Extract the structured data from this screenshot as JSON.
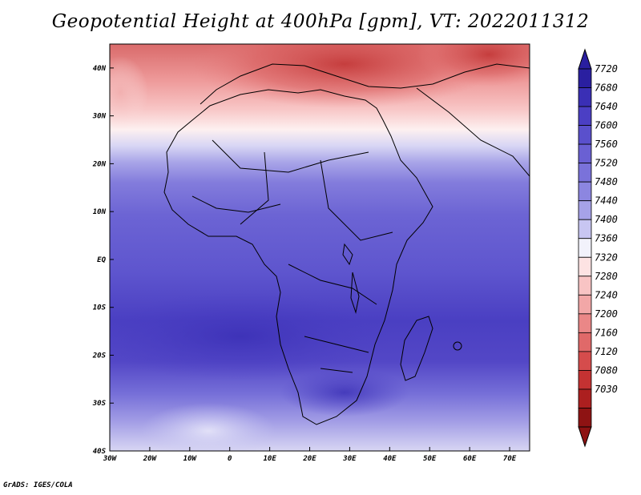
{
  "title": "Geopotential Height at 400hPa [gpm], VT: 2022011312",
  "credit": "GrADS: IGES/COLA",
  "map": {
    "lon_ticks": [
      "30W",
      "20W",
      "10W",
      "0",
      "10E",
      "20E",
      "30E",
      "40E",
      "50E",
      "60E",
      "70E"
    ],
    "lat_ticks": [
      "40N",
      "30N",
      "20N",
      "10N",
      "EQ",
      "10S",
      "20S",
      "30S",
      "40S"
    ],
    "lon_range": [
      -30,
      75
    ],
    "lat_range": [
      -40,
      45
    ]
  },
  "colorbar": {
    "levels": [
      "7720",
      "7680",
      "7640",
      "7600",
      "7560",
      "7520",
      "7480",
      "7440",
      "7400",
      "7360",
      "7320",
      "7280",
      "7240",
      "7200",
      "7160",
      "7120",
      "7080",
      "7030"
    ],
    "colors": [
      "#2a1fa0",
      "#3a2fb5",
      "#4b3fc4",
      "#5a50cc",
      "#6a60d3",
      "#7a72da",
      "#8c86e0",
      "#a6a2e8",
      "#c8c6f2",
      "#f2f2fb",
      "#fde3e3",
      "#f8c4c4",
      "#f2a7a7",
      "#ea8787",
      "#e06969",
      "#d54c4c",
      "#c43232",
      "#ac1f1f",
      "#8e1313"
    ]
  }
}
